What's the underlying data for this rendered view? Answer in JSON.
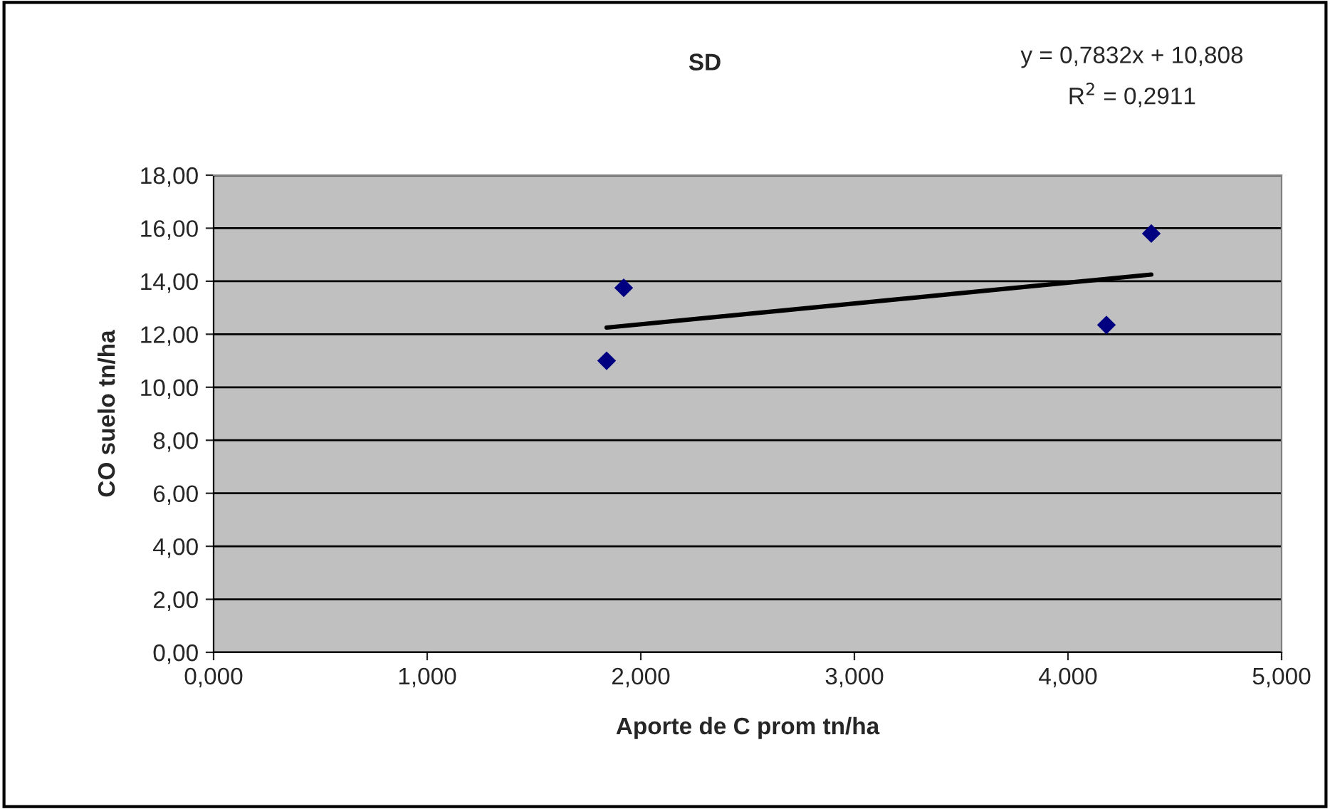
{
  "chart_data": {
    "type": "scatter",
    "title": "SD",
    "xlabel": "Aporte de C prom tn/ha",
    "ylabel": "CO suelo tn/ha",
    "annotations": [
      "y = 0,7832x + 10,808",
      "R$^{2}$ = 0,2911"
    ],
    "series": [
      {
        "color": "#000080",
        "marker": "diamond",
        "x": [
          1.84,
          1.92,
          4.18,
          4.39
        ],
        "values": [
          11.0,
          13.75,
          12.35,
          15.8
        ]
      },
      {
        "type": "line",
        "color": "#000000",
        "x": [
          1.84,
          4.39
        ],
        "values": [
          12.25,
          14.25
        ]
      }
    ],
    "xlim": [
      0,
      5
    ],
    "xticks": [
      {
        "value": 0,
        "label": "0,000"
      },
      {
        "value": 1,
        "label": "1,000"
      },
      {
        "value": 2,
        "label": "2,000"
      },
      {
        "value": 3,
        "label": "3,000"
      },
      {
        "value": 4,
        "label": "4,000"
      },
      {
        "value": 5,
        "label": "5,000"
      }
    ],
    "ylim": [
      0,
      18
    ],
    "yticks": [
      {
        "value": 0,
        "label": "0,00"
      },
      {
        "value": 2,
        "label": "2,00"
      },
      {
        "value": 4,
        "label": "4,00"
      },
      {
        "value": 6,
        "label": "6,00"
      },
      {
        "value": 8,
        "label": "8,00"
      },
      {
        "value": 10,
        "label": "10,00"
      },
      {
        "value": 12,
        "label": "12,00"
      },
      {
        "value": 14,
        "label": "14,00"
      },
      {
        "value": 16,
        "label": "16,00"
      },
      {
        "value": 18,
        "label": "18,00"
      }
    ],
    "grid": "y",
    "legend": false
  }
}
